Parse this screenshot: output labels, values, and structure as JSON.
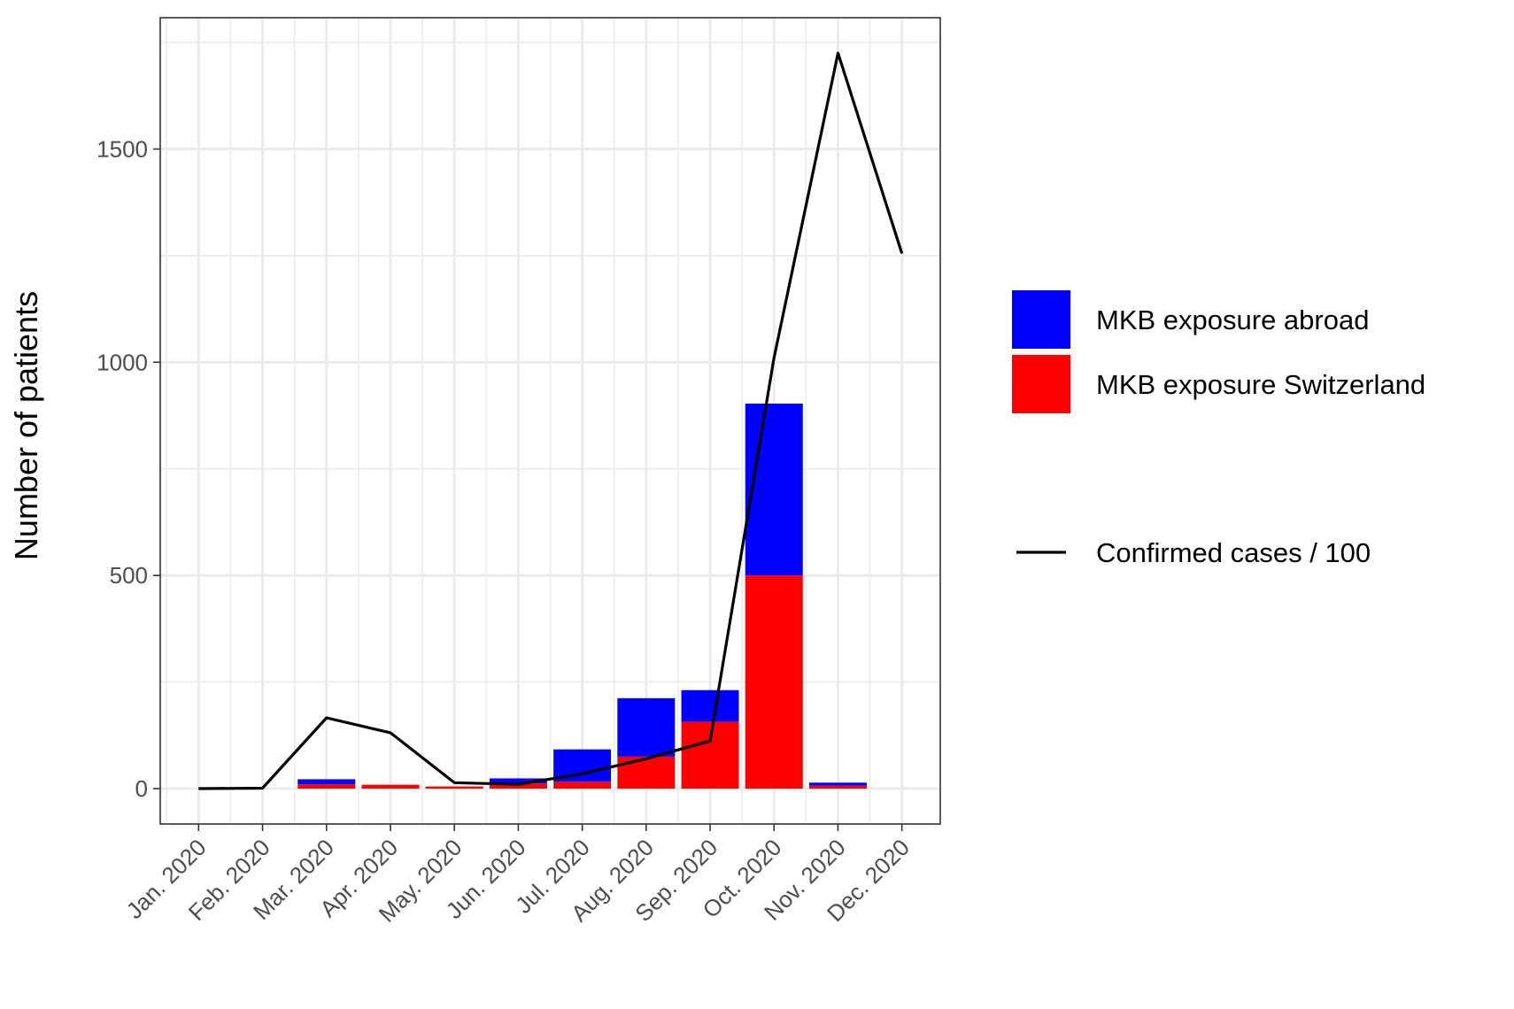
{
  "chart_data": {
    "type": "bar",
    "stacked": true,
    "categories": [
      "Jan. 2020",
      "Feb. 2020",
      "Mar. 2020",
      "Apr. 2020",
      "May. 2020",
      "Jun. 2020",
      "Jul. 2020",
      "Aug. 2020",
      "Sep. 2020",
      "Oct. 2020",
      "Nov. 2020",
      "Dec. 2020"
    ],
    "series": [
      {
        "name": "MKB exposure Switzerland",
        "kind": "bar",
        "color": "#ff0000",
        "values": [
          0,
          0,
          10,
          9,
          5,
          12,
          16,
          75,
          157,
          500,
          7,
          0
        ]
      },
      {
        "name": "MKB exposure abroad",
        "kind": "bar",
        "color": "#0000ff",
        "values": [
          0,
          0,
          12,
          0,
          0,
          12,
          76,
          137,
          74,
          403,
          7,
          0
        ]
      },
      {
        "name": "Confirmed cases / 100",
        "kind": "line",
        "color": "#000000",
        "values": [
          0,
          1,
          166,
          131,
          14,
          10,
          35,
          70,
          112,
          1010,
          1725,
          1255
        ]
      }
    ],
    "ylabel": "Number of patients",
    "xlabel": "",
    "yticks": [
      0,
      500,
      1000,
      1500
    ],
    "ylim": [
      -83,
      1808
    ],
    "grid": true,
    "legend_position": "right",
    "legend_entries": [
      "MKB exposure abroad",
      "MKB exposure Switzerland",
      "Confirmed cases / 100"
    ]
  }
}
